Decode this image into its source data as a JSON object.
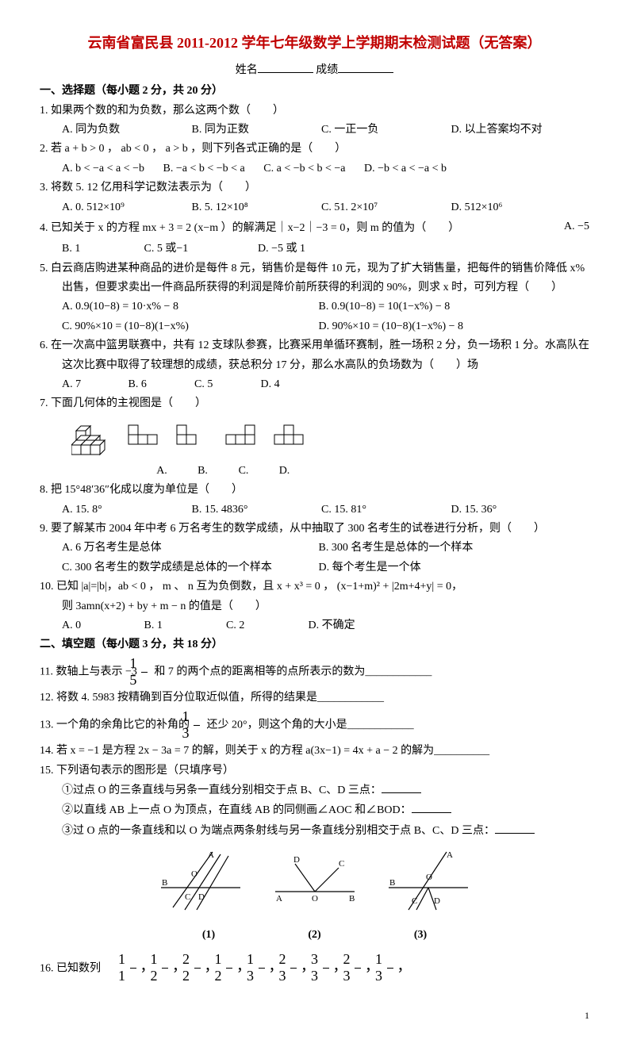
{
  "title": "云南省富民县 2011-2012 学年七年级数学上学期期末检测试题（无答案）",
  "header": {
    "name_label": "姓名",
    "score_label": "成绩"
  },
  "section1": {
    "header": "一、选择题（每小题 2 分，共 20 分）"
  },
  "q1": {
    "text": "1. 如果两个数的和为负数，那么这两个数（　　）",
    "a": "A. 同为负数",
    "b": "B. 同为正数",
    "c": "C. 一正一负",
    "d": "D. 以上答案均不对"
  },
  "q2": {
    "text": "2. 若 a + b > 0 ， ab < 0 ， a > b ，则下列各式正确的是（　　）",
    "a": "A.  b < −a < a < −b",
    "b": "B.  −a < b < −b < a",
    "c": "C.  a < −b < b < −a",
    "d": "D.  −b < a < −a < b"
  },
  "q3": {
    "text": "3. 将数 5. 12 亿用科学记数法表示为（　　）",
    "a": "A. 0. 512×10⁹",
    "b": "B. 5. 12×10⁸",
    "c": "C. 51. 2×10⁷",
    "d": "D. 512×10⁶"
  },
  "q4": {
    "text": "4. 已知关于 x 的方程 mx + 3 = 2 (x−m ）的解满足｜x−2｜−3 = 0，则 m 的值为（　　）",
    "tail": "A. −5",
    "a": "B. 1",
    "b": "C. 5 或−1",
    "c": "D. −5 或 1"
  },
  "q5": {
    "text": "5. 白云商店购进某种商品的进价是每件 8 元，销售价是每件 10 元，现为了扩大销售量，把每件的销售价降低 x%",
    "text2": "出售，但要求卖出一件商品所获得的利润是降价前所获得的利润的 90%，则求 x 时，可列方程（　　）",
    "a": "A.  0.9(10−8) = 10·x% − 8",
    "b": "B.  0.9(10−8) = 10(1−x%) − 8",
    "c": "C.  90%×10 = (10−8)(1−x%)",
    "d": "D.  90%×10 = (10−8)(1−x%) − 8"
  },
  "q6": {
    "text": "6. 在一次高中篮男联赛中，共有 12 支球队参赛，比赛采用单循环赛制，胜一场积 2 分，负一场积 1 分。水高队在",
    "text2": "这次比赛中取得了较理想的成绩，获总积分 17 分，那么水高队的负场数为（　　）场",
    "a": "A. 7",
    "b": "B. 6",
    "c": "C. 5",
    "d": "D. 4"
  },
  "q7": {
    "text": "7. 下面几何体的主视图是（　　）",
    "la": "A.",
    "lb": "B.",
    "lc": "C.",
    "ld": "D."
  },
  "q8": {
    "text": "8. 把 15°48′36″化成以度为单位是（　　）",
    "a": "A. 15. 8°",
    "b": "B. 15. 4836°",
    "c": "C. 15. 81°",
    "d": "D. 15. 36°"
  },
  "q9": {
    "text": "9. 要了解某市 2004 年中考 6 万名考生的数学成绩，从中抽取了 300 名考生的试卷进行分析，则（　　）",
    "a": "A. 6 万名考生是总体",
    "b": "B. 300 名考生是总体的一个样本",
    "c": "C. 300 名考生的数学成绩是总体的一个样本",
    "d": "D. 每个考生是一个体"
  },
  "q10": {
    "text": "10. 已知 |a|=|b|，ab < 0 ， m 、 n 互为负倒数，且 x + x³ = 0 ， (x−1+m)² + |2m+4+y| = 0，",
    "text2": "则 3amn(x+2) + by + m − n 的值是（　　）",
    "a": "A. 0",
    "b": "B. 1",
    "c": "C. 2",
    "d": "D. 不确定"
  },
  "section2": {
    "header": "二、填空题（每小题 3 分，共 18 分）"
  },
  "q11": {
    "pre": "11. 数轴上与表示 −3",
    "frac_n": "1",
    "frac_d": "5",
    "post": " 和 7 的两个点的距离相等的点所表示的数为",
    "blank": "____________"
  },
  "q12": {
    "text": "12. 将数 4. 5983 按精确到百分位取近似值，所得的结果是",
    "blank": "____________"
  },
  "q13": {
    "pre": "13. 一个角的余角比它的补角的",
    "frac_n": "1",
    "frac_d": "3",
    "post": " 还少 20°，则这个角的大小是",
    "blank": "____________"
  },
  "q14": {
    "text": "14. 若 x = −1 是方程 2x − 3a = 7 的解，则关于 x 的方程 a(3x−1) = 4x + a − 2 的解为",
    "blank": "__________"
  },
  "q15": {
    "text": "15. 下列语句表示的图形是（只填序号）",
    "s1": "①过点 O 的三条直线与另条一直线分别相交于点 B、C、D 三点：",
    "s2": "②以直线 AB 上一点 O 为顶点，在直线 AB 的同侧画∠AOC 和∠BOD：",
    "s3": "③过 O 点的一条直线和以 O 为端点两条射线与另一条直线分别相交于点 B、C、D 三点：",
    "l1": "(1)",
    "l2": "(2)",
    "l3": "(3)"
  },
  "q16": {
    "text": "16. 已知数列"
  },
  "seq": [
    {
      "n": "1",
      "d": "1"
    },
    {
      "n": "1",
      "d": "2"
    },
    {
      "n": "2",
      "d": "2"
    },
    {
      "n": "1",
      "d": "2"
    },
    {
      "n": "1",
      "d": "3"
    },
    {
      "n": "2",
      "d": "3"
    },
    {
      "n": "3",
      "d": "3"
    },
    {
      "n": "2",
      "d": "3"
    },
    {
      "n": "1",
      "d": "3"
    }
  ],
  "page": "1",
  "colors": {
    "title": "#c00000",
    "text": "#000000",
    "bg": "#ffffff"
  }
}
